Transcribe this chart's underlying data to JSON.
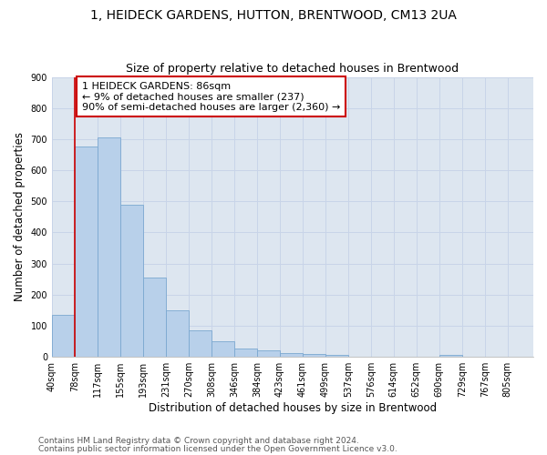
{
  "title1": "1, HEIDECK GARDENS, HUTTON, BRENTWOOD, CM13 2UA",
  "title2": "Size of property relative to detached houses in Brentwood",
  "xlabel": "Distribution of detached houses by size in Brentwood",
  "ylabel": "Number of detached properties",
  "bar_labels": [
    "40sqm",
    "78sqm",
    "117sqm",
    "155sqm",
    "193sqm",
    "231sqm",
    "270sqm",
    "308sqm",
    "346sqm",
    "384sqm",
    "423sqm",
    "461sqm",
    "499sqm",
    "537sqm",
    "576sqm",
    "614sqm",
    "652sqm",
    "690sqm",
    "729sqm",
    "767sqm",
    "805sqm"
  ],
  "bar_values": [
    135,
    675,
    705,
    490,
    255,
    150,
    85,
    50,
    28,
    20,
    12,
    8,
    5,
    0,
    0,
    0,
    0,
    7,
    0,
    0,
    0
  ],
  "bar_color": "#b8d0ea",
  "bar_edge_color": "#7ba8d0",
  "property_line_x": 78,
  "property_line_color": "#cc0000",
  "annotation_text": "1 HEIDECK GARDENS: 86sqm\n← 9% of detached houses are smaller (237)\n90% of semi-detached houses are larger (2,360) →",
  "annotation_box_color": "#cc0000",
  "annotation_text_color": "#000000",
  "annotation_bg_color": "#ffffff",
  "ylim": [
    0,
    900
  ],
  "xlim_min": 40,
  "xlim_max": 843,
  "bin_width": 38,
  "footer1": "Contains HM Land Registry data © Crown copyright and database right 2024.",
  "footer2": "Contains public sector information licensed under the Open Government Licence v3.0.",
  "bg_color": "#ffffff",
  "grid_color": "#c8d4e8",
  "title_fontsize": 10,
  "subtitle_fontsize": 9,
  "axis_label_fontsize": 8.5,
  "tick_fontsize": 7,
  "footer_fontsize": 6.5
}
